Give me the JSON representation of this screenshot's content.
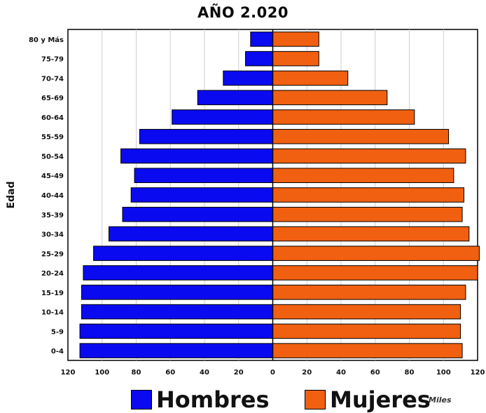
{
  "chart_data": {
    "type": "bar",
    "orientation": "horizontal",
    "chart_style": "population-pyramid",
    "title": "AÑO 2.020",
    "ylabel": "Edad",
    "unit_label": "Miles",
    "categories": [
      "80 y Más",
      "75-79",
      "70-74",
      "65-69",
      "60-64",
      "55-59",
      "50-54",
      "45-49",
      "40-44",
      "35-39",
      "30-34",
      "25-29",
      "20-24",
      "15-19",
      "10-14",
      "5-9",
      "0-4"
    ],
    "series": [
      {
        "name": "Hombres",
        "color": "#0a0af0",
        "side": "left",
        "values": [
          13,
          16,
          29,
          44,
          59,
          78,
          89,
          81,
          83,
          88,
          96,
          105,
          111,
          112,
          112,
          113,
          113
        ]
      },
      {
        "name": "Mujeres",
        "color": "#f06010",
        "side": "right",
        "values": [
          27,
          27,
          44,
          67,
          83,
          103,
          113,
          106,
          112,
          111,
          115,
          121,
          120,
          113,
          110,
          110,
          111
        ]
      }
    ],
    "xlim": [
      -120,
      120
    ],
    "x_ticks": [
      120,
      100,
      80,
      60,
      40,
      20,
      0,
      20,
      40,
      60,
      80,
      100,
      120
    ],
    "grid": true,
    "legend_position": "bottom"
  }
}
